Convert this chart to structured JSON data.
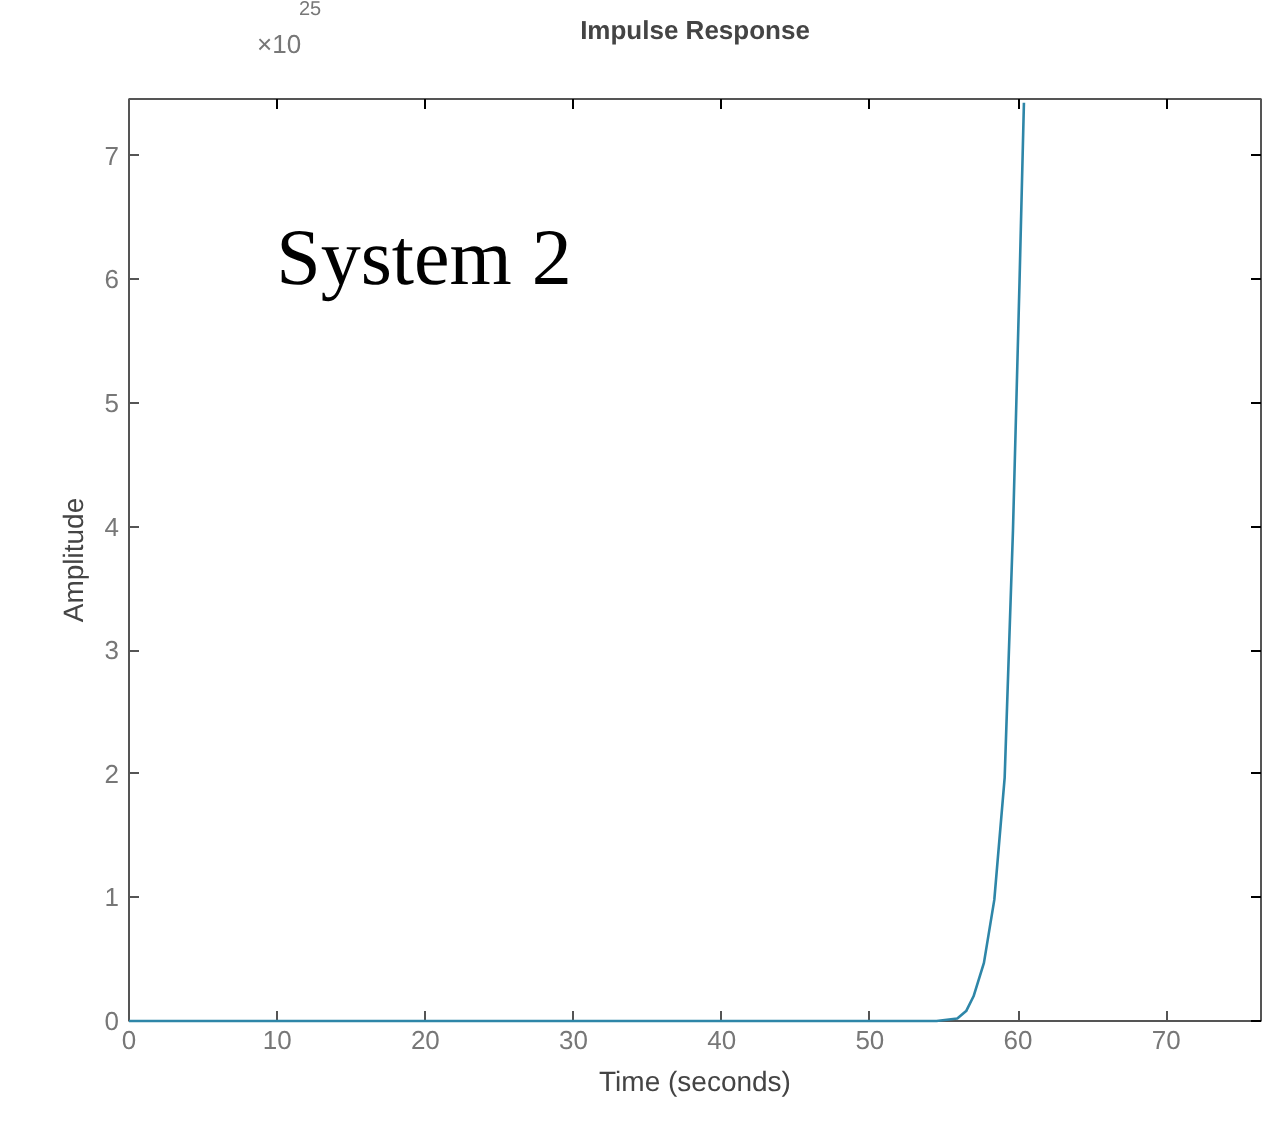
{
  "chart_data": {
    "type": "line",
    "title": "Impulse Response",
    "xlabel": "Time (seconds)",
    "ylabel": "Amplitude",
    "annotations": [
      "×10$^{25}$",
      "System 2"
    ],
    "x": [
      0,
      10,
      20,
      30,
      40,
      50,
      54.5,
      55.9,
      56.5,
      57,
      57.7,
      58.4,
      59.1,
      59.66,
      60.1,
      60.4
    ],
    "series": [
      {
        "color": "#2e86a8",
        "values": [
          0,
          0,
          0,
          0,
          0,
          0,
          0,
          0.02,
          0.08,
          0.2,
          0.47,
          0.98,
          1.97,
          3.97,
          5.97,
          7.43
        ]
      }
    ],
    "xlim": [
      0,
      76.4
    ],
    "ylim": [
      0,
      7.46
    ],
    "xticks": [
      0,
      10,
      20,
      30,
      40,
      50,
      60,
      70
    ],
    "yticks": [
      0,
      1,
      2,
      3,
      4,
      5,
      6,
      7
    ],
    "grid": false,
    "marker": "none",
    "line_style": "solid"
  }
}
